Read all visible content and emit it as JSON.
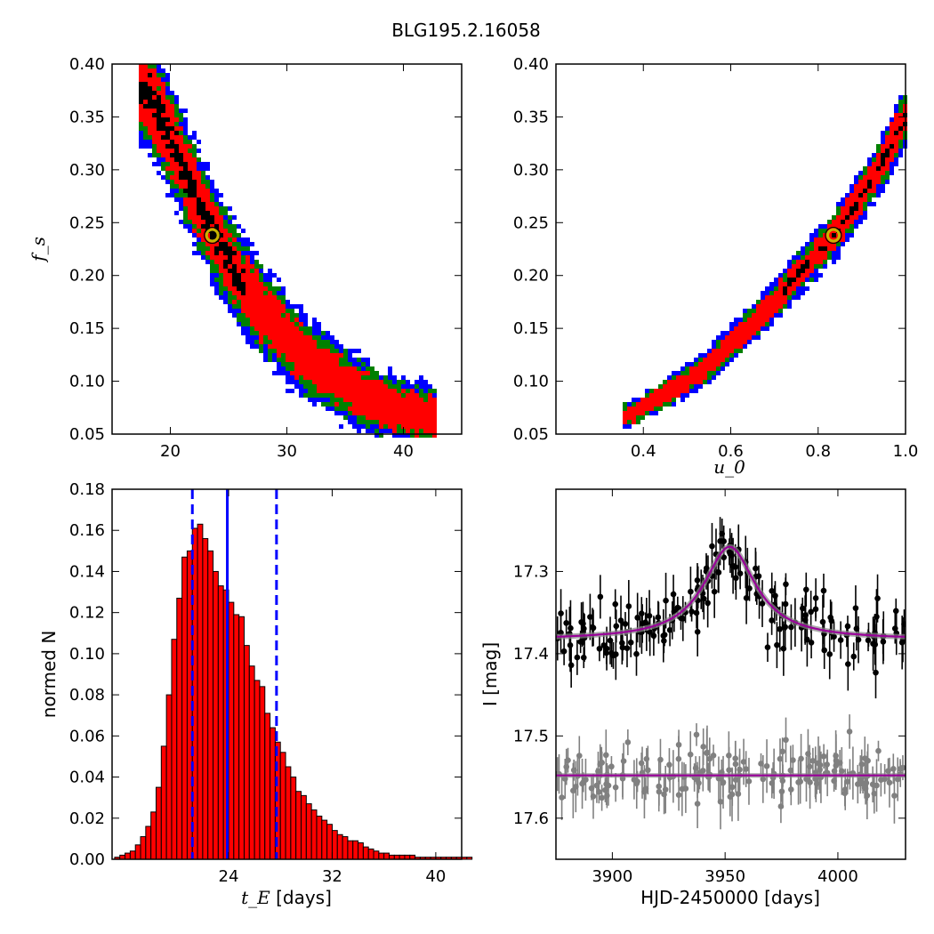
{
  "figure_title": "BLG195.2.16058",
  "colors": {
    "blue": "#0000ff",
    "green": "#008000",
    "red": "#ff0000",
    "black": "#000000",
    "marker": "#c8b400",
    "model": "#990099",
    "model_band": "#888888",
    "gray": "#808080"
  },
  "chart_data": [
    {
      "id": "A",
      "type": "heatmap",
      "xlabel": "",
      "ylabel": "f_s",
      "xlim": [
        15,
        45
      ],
      "ylim": [
        0.05,
        0.4
      ],
      "x_ticks": [
        20,
        30,
        40
      ],
      "y_ticks": [
        0.05,
        0.1,
        0.15,
        0.2,
        0.25,
        0.3,
        0.35,
        0.4
      ],
      "x_tick_labels": [
        "20",
        "30",
        "40"
      ],
      "y_tick_labels": [
        "0.05",
        "0.10",
        "0.15",
        "0.20",
        "0.25",
        "0.30",
        "0.35",
        "0.40"
      ],
      "levels": [
        "blue",
        "green",
        "red",
        "black"
      ],
      "ridge": [
        [
          18,
          0.375
        ],
        [
          20,
          0.33
        ],
        [
          22,
          0.28
        ],
        [
          24,
          0.235
        ],
        [
          26,
          0.195
        ],
        [
          28,
          0.165
        ],
        [
          30,
          0.14
        ],
        [
          32,
          0.12
        ],
        [
          34,
          0.105
        ],
        [
          36,
          0.09
        ],
        [
          38,
          0.08
        ],
        [
          40,
          0.072
        ],
        [
          42,
          0.068
        ]
      ],
      "best_fit": [
        23.6,
        0.238
      ]
    },
    {
      "id": "B",
      "type": "heatmap",
      "xlabel": "u_0",
      "ylabel": "",
      "xlim": [
        0.2,
        1.0
      ],
      "ylim": [
        0.05,
        0.4
      ],
      "x_ticks": [
        0.4,
        0.6,
        0.8,
        1.0
      ],
      "y_ticks": [
        0.05,
        0.1,
        0.15,
        0.2,
        0.25,
        0.3,
        0.35,
        0.4
      ],
      "x_tick_labels": [
        "0.4",
        "0.6",
        "0.8",
        "1.0"
      ],
      "y_tick_labels": [
        "0.05",
        "0.10",
        "0.15",
        "0.20",
        "0.25",
        "0.30",
        "0.35",
        "0.40"
      ],
      "levels": [
        "blue",
        "green",
        "red",
        "black"
      ],
      "ridge": [
        [
          0.37,
          0.068
        ],
        [
          0.45,
          0.088
        ],
        [
          0.5,
          0.1
        ],
        [
          0.55,
          0.115
        ],
        [
          0.6,
          0.135
        ],
        [
          0.65,
          0.155
        ],
        [
          0.7,
          0.175
        ],
        [
          0.75,
          0.2
        ],
        [
          0.8,
          0.222
        ],
        [
          0.84,
          0.24
        ],
        [
          0.9,
          0.275
        ],
        [
          0.95,
          0.31
        ],
        [
          1.0,
          0.35
        ]
      ],
      "best_fit": [
        0.835,
        0.238
      ]
    },
    {
      "id": "C",
      "type": "bar",
      "xlabel": "t_E",
      "xlabel_suffix": " [days]",
      "ylabel": "normed N",
      "xlim": [
        15,
        42
      ],
      "ylim": [
        0,
        0.18
      ],
      "x_ticks": [
        24,
        32,
        40
      ],
      "y_ticks": [
        0.0,
        0.02,
        0.04,
        0.06,
        0.08,
        0.1,
        0.12,
        0.14,
        0.16,
        0.18
      ],
      "x_tick_labels": [
        "24",
        "32",
        "40"
      ],
      "y_tick_labels": [
        "0.00",
        "0.02",
        "0.04",
        "0.06",
        "0.08",
        "0.10",
        "0.12",
        "0.14",
        "0.16",
        "0.18"
      ],
      "bin_start": 15.2,
      "bin_width": 0.4,
      "values": [
        0.001,
        0.002,
        0.003,
        0.004,
        0.007,
        0.011,
        0.016,
        0.023,
        0.035,
        0.055,
        0.08,
        0.107,
        0.127,
        0.147,
        0.15,
        0.161,
        0.163,
        0.156,
        0.15,
        0.14,
        0.133,
        0.131,
        0.125,
        0.119,
        0.118,
        0.104,
        0.094,
        0.087,
        0.084,
        0.071,
        0.064,
        0.057,
        0.052,
        0.045,
        0.04,
        0.033,
        0.031,
        0.027,
        0.024,
        0.021,
        0.019,
        0.017,
        0.014,
        0.012,
        0.011,
        0.009,
        0.009,
        0.008,
        0.006,
        0.005,
        0.004,
        0.003,
        0.003,
        0.002,
        0.002,
        0.002,
        0.002,
        0.002,
        0.001,
        0.001,
        0.001,
        0.001,
        0.001,
        0.001,
        0.001,
        0.001,
        0.001,
        0.001,
        0.001
      ],
      "median": 23.9,
      "dashed_lines": [
        21.2,
        27.7
      ]
    },
    {
      "id": "D",
      "type": "scatter",
      "xlabel": "HJD-2450000 [days]",
      "ylabel": "I [mag]",
      "xlim": [
        3875,
        4030
      ],
      "ylim": [
        17.65,
        17.2
      ],
      "x_ticks": [
        3900,
        3950,
        4000
      ],
      "y_ticks": [
        17.3,
        17.4,
        17.5,
        17.6
      ],
      "x_tick_labels": [
        "3900",
        "3950",
        "4000"
      ],
      "y_tick_labels": [
        "17.3",
        "17.4",
        "17.5",
        "17.6"
      ],
      "model": {
        "baseline": 17.383,
        "peak": 17.27,
        "t0": 3952,
        "width": 14
      },
      "residual_baseline": 17.548,
      "n_points": 340
    }
  ]
}
